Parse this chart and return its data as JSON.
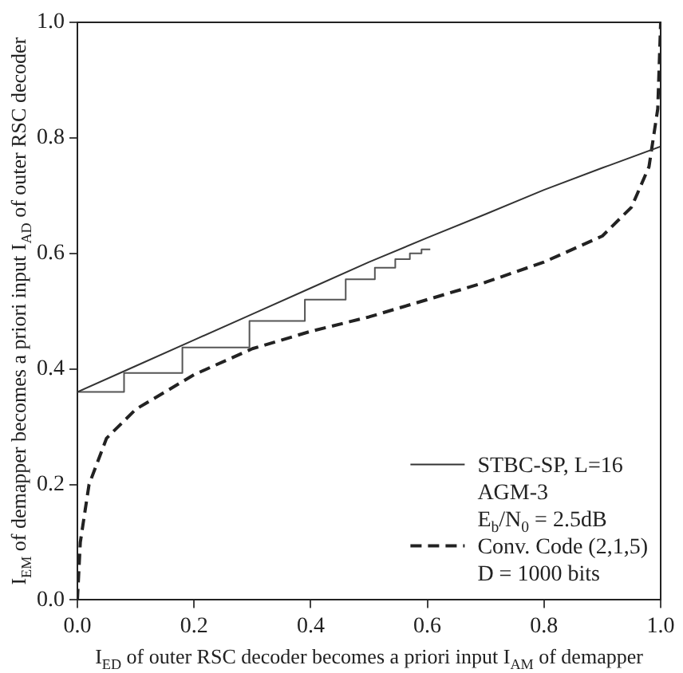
{
  "chart_data": {
    "type": "line",
    "xlabel": "I$_{ED}$ of outer RSC decoder becomes a priori input I$_{AM}$ of demapper",
    "ylabel": "I$_{EM}$ of demapper becomes a priori input I$_{AD}$ of outer RSC decoder",
    "xlim": [
      0,
      1
    ],
    "ylim": [
      0,
      1
    ],
    "xticks": [
      {
        "value": 0,
        "label": "0.0"
      },
      {
        "value": 0.2,
        "label": "0.2"
      },
      {
        "value": 0.4,
        "label": "0.4"
      },
      {
        "value": 0.6,
        "label": "0.6"
      },
      {
        "value": 0.8,
        "label": "0.8"
      },
      {
        "value": 1,
        "label": "1.0"
      }
    ],
    "yticks": [
      {
        "value": 0,
        "label": "0.0"
      },
      {
        "value": 0.2,
        "label": "0.2"
      },
      {
        "value": 0.4,
        "label": "0.4"
      },
      {
        "value": 0.6,
        "label": "0.6"
      },
      {
        "value": 0.8,
        "label": "0.8"
      },
      {
        "value": 1,
        "label": "1.0"
      }
    ],
    "grid": false,
    "legend": "bottom right",
    "marker": "none",
    "series": [
      {
        "name": "STBC-SP, L=16\nAGM-3\nE$_{b}$/N$_{0}$ = 2.5dB",
        "color": "#333333",
        "line_style": "solid",
        "x": [
          0,
          0.1,
          0.2,
          0.3,
          0.4,
          0.5,
          0.6,
          0.7,
          0.8,
          0.9,
          1.0
        ],
        "values": [
          0.36,
          0.405,
          0.45,
          0.495,
          0.54,
          0.585,
          0.627,
          0.668,
          0.71,
          0.748,
          0.785
        ]
      },
      {
        "name": "Conv. Code (2,1,5)\nD = 1000 bits",
        "color": "#222222",
        "line_style": "dashed",
        "x": [
          0,
          0.005,
          0.02,
          0.05,
          0.1,
          0.2,
          0.3,
          0.4,
          0.5,
          0.6,
          0.7,
          0.8,
          0.9,
          0.95,
          0.98,
          0.995,
          1.0
        ],
        "values": [
          0,
          0.1,
          0.2,
          0.28,
          0.33,
          0.39,
          0.435,
          0.465,
          0.49,
          0.52,
          0.55,
          0.585,
          0.63,
          0.68,
          0.75,
          0.85,
          1.0
        ]
      },
      {
        "color": "#555555",
        "line_style": "solid",
        "x": [
          0,
          0.08,
          0.08,
          0.18,
          0.18,
          0.295,
          0.295,
          0.39,
          0.39,
          0.46,
          0.46,
          0.51,
          0.51,
          0.545,
          0.545,
          0.57,
          0.57,
          0.59,
          0.59,
          0.605
        ],
        "values": [
          0.36,
          0.36,
          0.393,
          0.393,
          0.437,
          0.437,
          0.483,
          0.483,
          0.52,
          0.52,
          0.555,
          0.555,
          0.575,
          0.575,
          0.59,
          0.59,
          0.6,
          0.6,
          0.607,
          0.607
        ]
      }
    ]
  }
}
